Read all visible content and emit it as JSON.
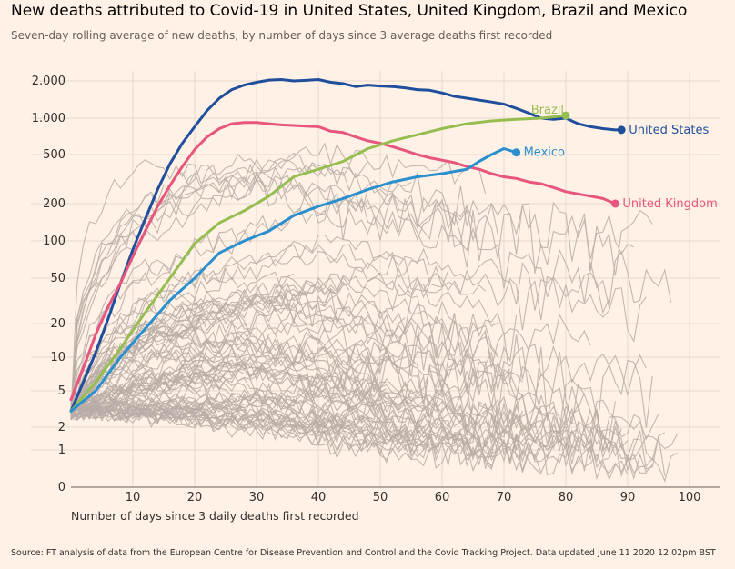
{
  "header": {
    "title": "New deaths attributed to Covid-19 in United States, United Kingdom, Brazil and Mexico",
    "subtitle": "Seven-day rolling average of new deaths, by number of days since 3 average deaths first recorded"
  },
  "footer": {
    "source": "Source: FT analysis of data from the European Centre for Disease Prevention and Control and the Covid Tracking Project. Data updated June 11 2020 12.02pm BST"
  },
  "colors": {
    "background": "#fff1e5",
    "grid": "#e6d9ce",
    "other_countries": "#b8ada6",
    "axis": "#66605c"
  },
  "chart_data": {
    "type": "line",
    "title": "New deaths attributed to Covid-19 in United States, United Kingdom, Brazil and Mexico",
    "xlabel": "Number of days since 3 daily deaths first recorded",
    "ylabel": "",
    "xlim": [
      0,
      105
    ],
    "x_ticks": [
      10,
      20,
      30,
      40,
      50,
      60,
      70,
      80,
      90,
      100
    ],
    "y_scale": "symlog",
    "y_ticks": [
      {
        "value": 0,
        "label": "0"
      },
      {
        "value": 1,
        "label": "1"
      },
      {
        "value": 2,
        "label": "2"
      },
      {
        "value": 5,
        "label": "5"
      },
      {
        "value": 10,
        "label": "10"
      },
      {
        "value": 20,
        "label": "20"
      },
      {
        "value": 50,
        "label": "50"
      },
      {
        "value": 100,
        "label": "100"
      },
      {
        "value": 200,
        "label": "200"
      },
      {
        "value": 500,
        "label": "500"
      },
      {
        "value": 1000,
        "label": "1.000"
      },
      {
        "value": 2000,
        "label": "2.000"
      }
    ],
    "series": [
      {
        "name": "United States",
        "color": "#1f4e9c",
        "x": [
          0,
          2,
          4,
          6,
          8,
          10,
          12,
          14,
          16,
          18,
          20,
          22,
          24,
          26,
          28,
          30,
          32,
          34,
          36,
          38,
          40,
          42,
          44,
          46,
          48,
          50,
          52,
          54,
          56,
          58,
          60,
          62,
          64,
          66,
          68,
          70,
          72,
          74,
          76,
          78,
          80,
          82,
          84,
          86,
          88,
          89
        ],
        "y": [
          3,
          6,
          11,
          22,
          45,
          85,
          150,
          260,
          420,
          620,
          850,
          1150,
          1450,
          1700,
          1850,
          1950,
          2030,
          2050,
          2000,
          2020,
          2050,
          1950,
          1900,
          1800,
          1850,
          1820,
          1800,
          1760,
          1700,
          1680,
          1600,
          1500,
          1450,
          1400,
          1350,
          1300,
          1200,
          1100,
          1000,
          980,
          1000,
          900,
          850,
          820,
          800,
          800
        ]
      },
      {
        "name": "United Kingdom",
        "color": "#e8557d",
        "x": [
          0,
          2,
          4,
          6,
          8,
          10,
          12,
          14,
          16,
          18,
          20,
          22,
          24,
          26,
          28,
          30,
          32,
          34,
          36,
          38,
          40,
          42,
          44,
          46,
          48,
          50,
          52,
          54,
          56,
          58,
          60,
          62,
          64,
          66,
          68,
          70,
          72,
          74,
          76,
          78,
          80,
          82,
          84,
          86,
          88
        ],
        "y": [
          4,
          8,
          16,
          28,
          45,
          75,
          120,
          190,
          280,
          400,
          550,
          700,
          820,
          900,
          920,
          920,
          900,
          880,
          870,
          860,
          850,
          780,
          760,
          700,
          650,
          620,
          580,
          540,
          500,
          470,
          450,
          430,
          400,
          380,
          350,
          330,
          320,
          300,
          290,
          270,
          250,
          240,
          230,
          220,
          200
        ]
      },
      {
        "name": "Brazil",
        "color": "#96bd50",
        "x": [
          0,
          4,
          8,
          12,
          16,
          20,
          24,
          28,
          32,
          36,
          40,
          44,
          48,
          52,
          56,
          60,
          64,
          68,
          72,
          76,
          80
        ],
        "y": [
          3,
          6,
          12,
          25,
          50,
          95,
          140,
          175,
          230,
          330,
          380,
          440,
          560,
          650,
          730,
          820,
          900,
          950,
          980,
          1000,
          1050
        ]
      },
      {
        "name": "Mexico",
        "color": "#2a8fce",
        "x": [
          0,
          4,
          8,
          12,
          16,
          20,
          24,
          28,
          32,
          36,
          40,
          44,
          48,
          52,
          56,
          60,
          64,
          66,
          68,
          70,
          72
        ],
        "y": [
          3,
          5,
          10,
          18,
          32,
          50,
          80,
          100,
          120,
          160,
          190,
          220,
          260,
          300,
          330,
          350,
          380,
          440,
          500,
          560,
          520
        ]
      }
    ]
  }
}
